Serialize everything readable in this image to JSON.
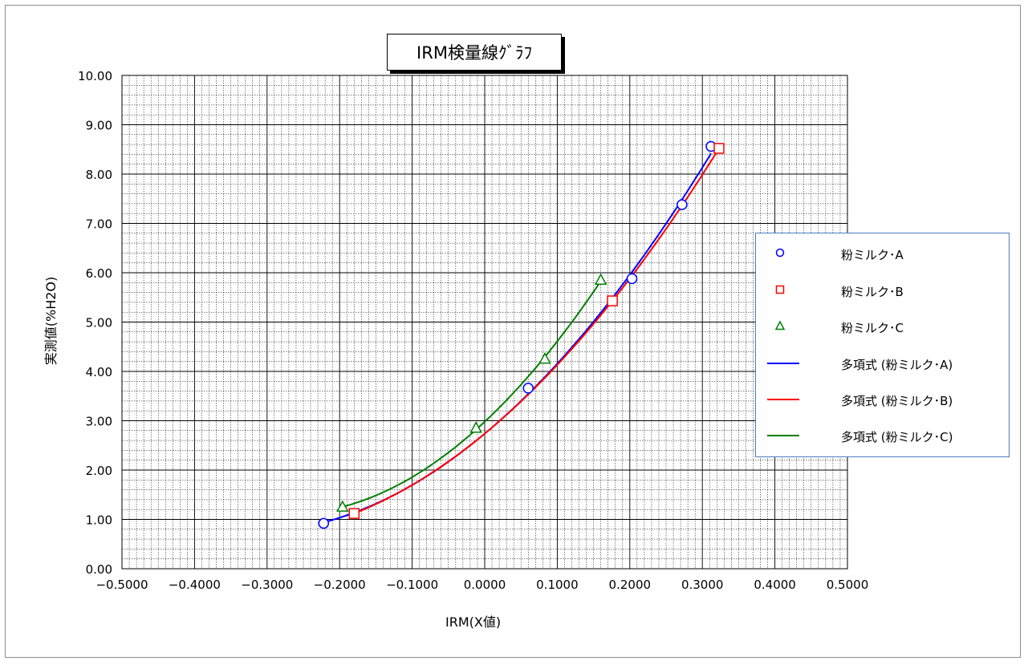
{
  "chart_data": {
    "type": "scatter",
    "title": "IRM検量線ｸﾞﾗﾌ",
    "xlabel": "IRM(X値)",
    "ylabel": "実測値(%H2O)",
    "xlim": [
      -0.5,
      0.5
    ],
    "ylim": [
      0,
      10
    ],
    "x_ticks": [
      "−0.5000",
      "−0.4000",
      "−0.3000",
      "−0.2000",
      "−0.1000",
      "0.0000",
      "0.1000",
      "0.2000",
      "0.3000",
      "0.4000",
      "0.5000"
    ],
    "y_ticks": [
      "0.00",
      "1.00",
      "2.00",
      "3.00",
      "4.00",
      "5.00",
      "6.00",
      "7.00",
      "8.00",
      "9.00",
      "10.00"
    ],
    "grid": true,
    "legend_position": "right",
    "series": [
      {
        "name": "粉ミルク･A",
        "marker": "circle",
        "color": "#0000ff",
        "points": [
          [
            -0.222,
            0.92
          ],
          [
            0.06,
            3.66
          ],
          [
            0.203,
            5.88
          ],
          [
            0.272,
            7.38
          ],
          [
            0.312,
            8.56
          ]
        ]
      },
      {
        "name": "粉ミルク･B",
        "marker": "square",
        "color": "#ff0000",
        "points": [
          [
            -0.18,
            1.12
          ],
          [
            0.176,
            5.43
          ],
          [
            0.323,
            8.52
          ]
        ]
      },
      {
        "name": "粉ミルク･C",
        "marker": "triangle",
        "color": "#008000",
        "points": [
          [
            -0.196,
            1.25
          ],
          [
            -0.012,
            2.85
          ],
          [
            0.083,
            4.25
          ],
          [
            0.16,
            5.85
          ]
        ]
      }
    ],
    "trendlines": [
      {
        "name": "多項式 (粉ミルク･A)",
        "type": "polynomial",
        "color": "#0000ff",
        "x_range": [
          -0.222,
          0.312
        ]
      },
      {
        "name": "多項式 (粉ミルク･B)",
        "type": "polynomial",
        "color": "#ff0000",
        "x_range": [
          -0.18,
          0.323
        ]
      },
      {
        "name": "多項式 (粉ミルク･C)",
        "type": "polynomial",
        "color": "#008000",
        "x_range": [
          -0.196,
          0.16
        ]
      }
    ]
  }
}
